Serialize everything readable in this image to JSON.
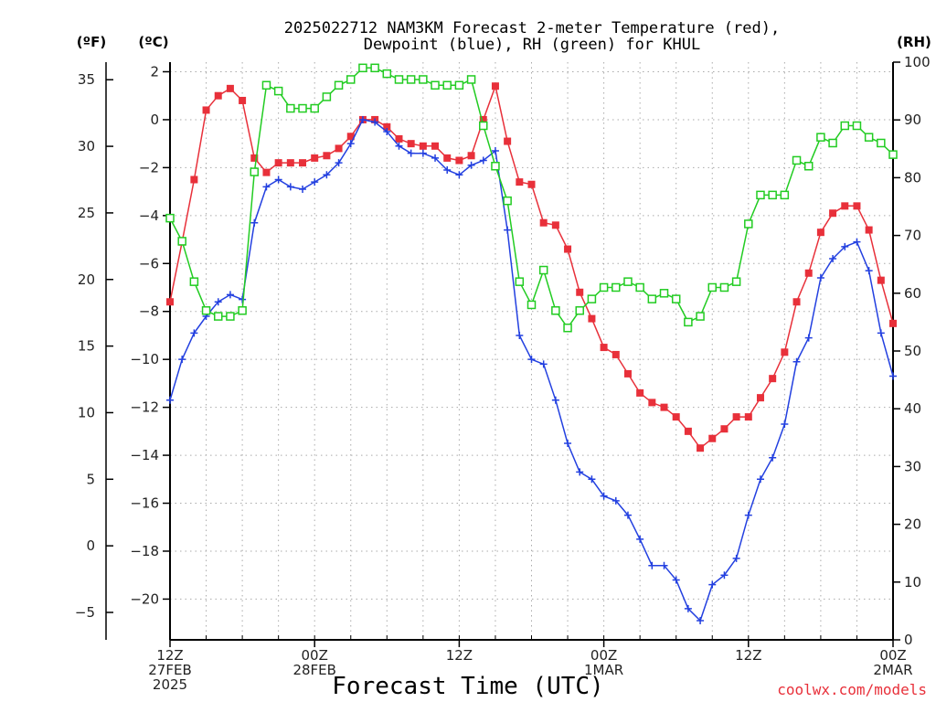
{
  "chart_data": {
    "type": "line",
    "title_lines": [
      "2025022712 NAM3KM Forecast 2-meter Temperature (red),",
      "Dewpoint (blue), RH (green) for KHUL"
    ],
    "xlabel": "Forecast Time (UTC)",
    "credit": "coolwx.com/models",
    "unit_labels": {
      "fahrenheit": "(ºF)",
      "celsius": "(ºC)",
      "rh": "(RH)"
    },
    "x_range_hours": [
      0,
      60
    ],
    "x_ticks": [
      {
        "hour": 0,
        "lines": [
          "12Z",
          "27FEB",
          "2025"
        ]
      },
      {
        "hour": 12,
        "lines": [
          "00Z",
          "28FEB"
        ]
      },
      {
        "hour": 24,
        "lines": [
          "12Z"
        ]
      },
      {
        "hour": 36,
        "lines": [
          "00Z",
          "1MAR"
        ]
      },
      {
        "hour": 48,
        "lines": [
          "12Z"
        ]
      },
      {
        "hour": 60,
        "lines": [
          "00Z",
          "2MAR"
        ]
      }
    ],
    "celsius_axis": {
      "range": [
        -21.7,
        2.4
      ],
      "ticks": [
        2,
        0,
        -2,
        -4,
        -6,
        -8,
        -10,
        -12,
        -14,
        -16,
        -18,
        -20
      ]
    },
    "fahrenheit_axis": {
      "ticks": [
        35,
        30,
        25,
        20,
        15,
        10,
        5,
        0,
        -5
      ]
    },
    "rh_axis": {
      "range": [
        0,
        100
      ],
      "ticks": [
        100,
        90,
        80,
        70,
        60,
        50,
        40,
        30,
        20,
        10,
        0
      ]
    },
    "grid": true,
    "series": [
      {
        "name": "Temperature",
        "units": "C",
        "color": "#e8303a",
        "marker": "filled-square",
        "hours": [
          0,
          1,
          2,
          3,
          4,
          5,
          6,
          7,
          8,
          9,
          10,
          11,
          12,
          13,
          14,
          15,
          16,
          17,
          18,
          19,
          20,
          21,
          22,
          23,
          24,
          25,
          26,
          27,
          28,
          29,
          30,
          31,
          32,
          33,
          34,
          35,
          36,
          37,
          38,
          39,
          40,
          41,
          42,
          43,
          44,
          45,
          46,
          47,
          48,
          49,
          50,
          51,
          52,
          53,
          54,
          55,
          56,
          57,
          58,
          59,
          60
        ],
        "values": [
          -7.6,
          -5.1,
          -2.5,
          0.4,
          1.0,
          1.3,
          0.8,
          -1.6,
          -2.2,
          -1.8,
          -1.8,
          -1.8,
          -1.6,
          -1.5,
          -1.2,
          -0.7,
          0.0,
          0.0,
          -0.3,
          -0.8,
          -1.0,
          -1.1,
          -1.1,
          -1.6,
          -1.7,
          -1.5,
          0.0,
          1.4,
          -0.9,
          -2.6,
          -2.7,
          -4.3,
          -4.4,
          -5.4,
          -7.2,
          -8.3,
          -9.5,
          -9.8,
          -10.6,
          -11.4,
          -11.8,
          -12.0,
          -12.4,
          -13.0,
          -13.7,
          -13.3,
          -12.9,
          -12.4,
          -12.4,
          -11.6,
          -10.8,
          -9.7,
          -7.6,
          -6.4,
          -4.7,
          -3.9,
          -3.6,
          -3.6,
          -4.6,
          -6.7,
          -8.5
        ]
      },
      {
        "name": "Dewpoint",
        "units": "C",
        "color": "#2340e0",
        "marker": "plus",
        "hours": [
          0,
          1,
          2,
          3,
          4,
          5,
          6,
          7,
          8,
          9,
          10,
          11,
          12,
          13,
          14,
          15,
          16,
          17,
          18,
          19,
          20,
          21,
          22,
          23,
          24,
          25,
          26,
          27,
          28,
          29,
          30,
          31,
          32,
          33,
          34,
          35,
          36,
          37,
          38,
          39,
          40,
          41,
          42,
          43,
          44,
          45,
          46,
          47,
          48,
          49,
          50,
          51,
          52,
          53,
          54,
          55,
          56,
          57,
          58,
          59,
          60
        ],
        "values": [
          -11.7,
          -10.0,
          -8.9,
          -8.2,
          -7.6,
          -7.3,
          -7.5,
          -4.3,
          -2.8,
          -2.5,
          -2.8,
          -2.9,
          -2.6,
          -2.3,
          -1.8,
          -1.0,
          0.0,
          -0.1,
          -0.5,
          -1.1,
          -1.4,
          -1.4,
          -1.6,
          -2.1,
          -2.3,
          -1.9,
          -1.7,
          -1.3,
          -4.6,
          -9.0,
          -10.0,
          -10.2,
          -11.7,
          -13.5,
          -14.7,
          -15.0,
          -15.7,
          -15.9,
          -16.5,
          -17.5,
          -18.6,
          -18.6,
          -19.2,
          -20.4,
          -20.9,
          -19.4,
          -19.0,
          -18.3,
          -16.5,
          -15.0,
          -14.1,
          -12.7,
          -10.1,
          -9.1,
          -6.6,
          -5.8,
          -5.3,
          -5.1,
          -6.3,
          -8.9,
          -10.7
        ]
      },
      {
        "name": "RH",
        "units": "%",
        "color": "#22cc22",
        "marker": "open-square",
        "hours": [
          0,
          1,
          2,
          3,
          4,
          5,
          6,
          7,
          8,
          9,
          10,
          11,
          12,
          13,
          14,
          15,
          16,
          17,
          18,
          19,
          20,
          21,
          22,
          23,
          24,
          25,
          26,
          27,
          28,
          29,
          30,
          31,
          32,
          33,
          34,
          35,
          36,
          37,
          38,
          39,
          40,
          41,
          42,
          43,
          44,
          45,
          46,
          47,
          48,
          49,
          50,
          51,
          52,
          53,
          54,
          55,
          56,
          57,
          58,
          59,
          60
        ],
        "values": [
          73,
          69,
          62,
          57,
          56,
          56,
          57,
          81,
          96,
          95,
          92,
          92,
          92,
          94,
          96,
          97,
          99,
          99,
          98,
          97,
          97,
          97,
          96,
          96,
          96,
          97,
          89,
          82,
          76,
          62,
          58,
          64,
          57,
          54,
          57,
          59,
          61,
          61,
          62,
          61,
          59,
          60,
          59,
          55,
          56,
          61,
          61,
          62,
          72,
          77,
          77,
          77,
          83,
          82,
          87,
          86,
          89,
          89,
          87,
          86,
          84
        ]
      }
    ]
  }
}
